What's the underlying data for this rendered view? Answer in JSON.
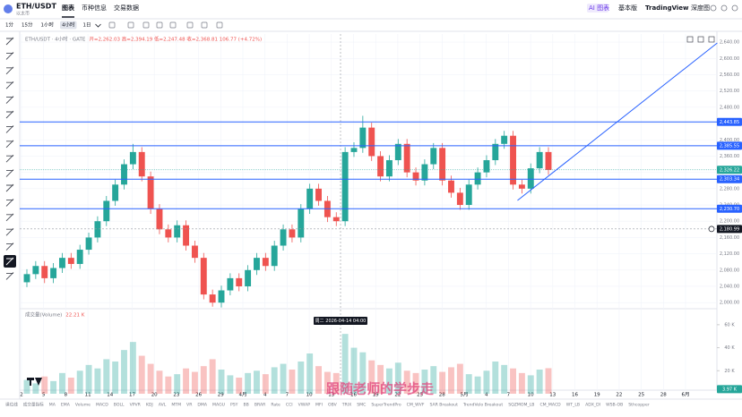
{
  "header": {
    "symbol": "ETH/USDT",
    "subtitle": "以太币",
    "tabs": [
      "图表",
      "币种信息",
      "交易数据"
    ],
    "right": [
      "AI 图表",
      "基本版",
      "TradingView",
      "深度图"
    ]
  },
  "toolbar": {
    "intervals": [
      "1分",
      "15分",
      "1小时",
      "4小时",
      "1日"
    ],
    "selected": 3
  },
  "chart_data": {
    "type": "candlestick",
    "title": "ETH/USDT · 4小时 · GATE",
    "ohlc_label": "开=2,262.03 高=2,394.19 低=2,247.48 收=2,368.81 106.77 (+4.72%)",
    "up_color": "#26a69a",
    "down_color": "#ef5350",
    "open": [
      2050,
      2070,
      2090,
      2060,
      2085,
      2110,
      2095,
      2130,
      2160,
      2200,
      2250,
      2290,
      2340,
      2370,
      2310,
      2230,
      2180,
      2160,
      2190,
      2140,
      2110,
      2020,
      2000,
      2030,
      2060,
      2040,
      2080,
      2110,
      2090,
      2140,
      2180,
      2160,
      2230,
      2280,
      2250,
      2210,
      2200,
      2370,
      2380,
      2430,
      2360,
      2310,
      2350,
      2390,
      2320,
      2300,
      2340,
      2380,
      2300,
      2270,
      2240,
      2290,
      2320,
      2350,
      2390,
      2410,
      2290,
      2280,
      2330,
      2370
    ],
    "high": [
      2082,
      2102,
      2102,
      2097,
      2122,
      2122,
      2142,
      2172,
      2212,
      2262,
      2302,
      2352,
      2390,
      2382,
      2322,
      2242,
      2192,
      2202,
      2202,
      2152,
      2122,
      2032,
      2042,
      2072,
      2072,
      2092,
      2122,
      2122,
      2152,
      2192,
      2192,
      2242,
      2292,
      2292,
      2262,
      2222,
      2382,
      2394,
      2459,
      2442,
      2372,
      2362,
      2402,
      2402,
      2332,
      2352,
      2392,
      2392,
      2312,
      2282,
      2302,
      2332,
      2362,
      2402,
      2422,
      2422,
      2302,
      2342,
      2382,
      2382
    ],
    "low": [
      2038,
      2058,
      2048,
      2048,
      2073,
      2083,
      2083,
      2118,
      2148,
      2188,
      2238,
      2278,
      2328,
      2298,
      2218,
      2168,
      2148,
      2148,
      2128,
      2098,
      2008,
      1990,
      1988,
      2018,
      2028,
      2028,
      2068,
      2078,
      2078,
      2128,
      2148,
      2148,
      2218,
      2238,
      2198,
      2188,
      2188,
      2358,
      2368,
      2348,
      2298,
      2298,
      2338,
      2308,
      2288,
      2288,
      2328,
      2288,
      2258,
      2228,
      2228,
      2278,
      2308,
      2338,
      2378,
      2278,
      2268,
      2268,
      2318,
      2314
    ],
    "close": [
      2070,
      2090,
      2060,
      2085,
      2110,
      2095,
      2130,
      2160,
      2200,
      2250,
      2290,
      2340,
      2370,
      2310,
      2230,
      2180,
      2160,
      2190,
      2140,
      2110,
      2020,
      2000,
      2030,
      2060,
      2040,
      2080,
      2110,
      2090,
      2140,
      2180,
      2160,
      2230,
      2280,
      2250,
      2210,
      2200,
      2370,
      2380,
      2430,
      2360,
      2310,
      2350,
      2390,
      2320,
      2300,
      2340,
      2380,
      2300,
      2270,
      2240,
      2290,
      2320,
      2350,
      2390,
      2410,
      2290,
      2280,
      2330,
      2370,
      2326
    ],
    "ylim": [
      1985,
      2660
    ],
    "yticks": [
      {
        "value": 2000,
        "label": "2,000.00"
      },
      {
        "value": 2040,
        "label": "2,040.00"
      },
      {
        "value": 2080,
        "label": "2,080.00"
      },
      {
        "value": 2120,
        "label": "2,120.00"
      },
      {
        "value": 2160,
        "label": "2,160.00"
      },
      {
        "value": 2200,
        "label": "2,200.00"
      },
      {
        "value": 2240,
        "label": "2,240.00"
      },
      {
        "value": 2280,
        "label": "2,280.00"
      },
      {
        "value": 2320,
        "label": "2,320.00"
      },
      {
        "value": 2360,
        "label": "2,360.00"
      },
      {
        "value": 2400,
        "label": "2,400.00"
      },
      {
        "value": 2440,
        "label": "2,440.00"
      },
      {
        "value": 2480,
        "label": "2,480.00"
      },
      {
        "value": 2520,
        "label": "2,520.00"
      },
      {
        "value": 2560,
        "label": "2,560.00"
      },
      {
        "value": 2600,
        "label": "2,600.00"
      },
      {
        "value": 2640,
        "label": "2,640.00"
      }
    ],
    "grid": true,
    "price_lines": [
      {
        "value": 2443.85,
        "label": "2,443.85"
      },
      {
        "value": 2385.55,
        "label": "2,385.55"
      },
      {
        "value": 2303.34,
        "label": "2,303.34"
      },
      {
        "value": 2230.7,
        "label": "2,230.70"
      }
    ],
    "line_color": "#2962ff",
    "current_price": {
      "value": 2326.22,
      "label": "2,326.22"
    },
    "crosshair_price": {
      "value": 2180.99,
      "label": "2,180.99"
    },
    "crosshair_time": "周二 2026-04-14 04:00",
    "trend_line": {
      "x": [
        55.5,
        78.1
      ],
      "y": [
        2251,
        2638
      ]
    },
    "x_labels": [
      "2",
      "5",
      "8",
      "11",
      "14",
      "17",
      "20",
      "23",
      "26",
      "29",
      "4月",
      "4",
      "7",
      "10",
      "13",
      "16",
      "19",
      "22",
      "25",
      "28",
      "5月",
      "4",
      "7",
      "10",
      "13",
      "16",
      "19",
      "22",
      "25",
      "28",
      "6月"
    ],
    "volume": {
      "name": "成交量(Volume)",
      "values": [
        12000,
        9000,
        15000,
        11000,
        18000,
        14000,
        20000,
        25000,
        22000,
        30000,
        28000,
        38000,
        45000,
        33000,
        26000,
        20000,
        15000,
        17000,
        22000,
        19000,
        24000,
        30000,
        21000,
        16000,
        14000,
        18000,
        20000,
        17000,
        23000,
        26000,
        21000,
        28000,
        35000,
        24000,
        19000,
        18000,
        52000,
        40000,
        36000,
        29000,
        25000,
        22000,
        27000,
        20000,
        18000,
        21000,
        24000,
        19000,
        23000,
        26000,
        17000,
        15000,
        20000,
        28000,
        25000,
        22000,
        18000,
        16000,
        21000,
        22210
      ],
      "value_label": "22.21 K",
      "ylim": [
        0,
        70000
      ],
      "yticks": [
        {
          "value": 20000,
          "label": "20 K"
        },
        {
          "value": 40000,
          "label": "40 K"
        },
        {
          "value": 60000,
          "label": "60 K"
        }
      ],
      "marker": {
        "value": 3970,
        "label": "3.97 K"
      }
    }
  },
  "indicators": [
    "课位线",
    "成交量指标",
    "MA",
    "EMA",
    "Volume",
    "MACD",
    "BOLL",
    "VPVR",
    "KDJ",
    "AVL",
    "MTM",
    "VR",
    "DMA",
    "MAGU",
    "PSY",
    "BB",
    "BRAR",
    "Rate",
    "CCI",
    "VWAP",
    "MFI",
    "OBV",
    "TRIX",
    "SMC",
    "SuperTrendPro",
    "CM_WVF",
    "SAR Breakout",
    "TrendVelo Breakout",
    "SQZMOM_LB",
    "CM_MACD",
    "WT_LB",
    "ADX_DI",
    "WSB-OB",
    "Sthcopper"
  ],
  "watermark": "跟随老师的学步走"
}
